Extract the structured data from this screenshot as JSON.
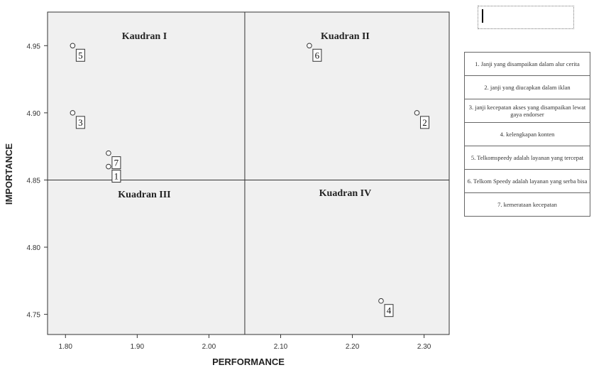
{
  "chart_data": {
    "type": "scatter",
    "xlabel": "PERFORMANCE",
    "ylabel": "IMPORTANCE",
    "xlim": [
      1.775,
      2.335
    ],
    "ylim": [
      4.735,
      4.975
    ],
    "xticks": [
      "1.80",
      "1.90",
      "2.00",
      "2.10",
      "2.20",
      "2.30"
    ],
    "yticks": [
      "4.75",
      "4.80",
      "4.85",
      "4.90",
      "4.95"
    ],
    "xtick_values": [
      1.8,
      1.9,
      2.0,
      2.1,
      2.2,
      2.3
    ],
    "ytick_values": [
      4.75,
      4.8,
      4.85,
      4.9,
      4.95
    ],
    "ref_x": 2.05,
    "ref_y": 4.85,
    "grid": false,
    "quadrants": [
      {
        "label": "Kaudran I",
        "x": 1.91,
        "y": 4.955
      },
      {
        "label": "Kuadran II",
        "x": 2.19,
        "y": 4.955
      },
      {
        "label": "Kuadran III",
        "x": 1.91,
        "y": 4.837
      },
      {
        "label": "Kuadran IV",
        "x": 2.19,
        "y": 4.838
      }
    ],
    "points": [
      {
        "label": "1",
        "x": 1.86,
        "y": 4.86
      },
      {
        "label": "2",
        "x": 2.29,
        "y": 4.9
      },
      {
        "label": "3",
        "x": 1.81,
        "y": 4.9
      },
      {
        "label": "4",
        "x": 2.24,
        "y": 4.76
      },
      {
        "label": "5",
        "x": 1.81,
        "y": 4.95
      },
      {
        "label": "6",
        "x": 2.14,
        "y": 4.95
      },
      {
        "label": "7",
        "x": 1.86,
        "y": 4.87
      }
    ]
  },
  "legend": {
    "items": [
      "1. Janji yang disampaikan dalam alur cerita",
      "2. janji yang diucapkan dalam iklan",
      "3. janji kecepatan akses yang disampaikan lewat gaya endorser",
      "4. kelengkapan konten",
      "5. Telkomspeedy adalah layanan yang tercepat",
      "6. Telkom Speedy adalah layanan yang serba bisa",
      "7. kemerataan kecepatan"
    ]
  }
}
